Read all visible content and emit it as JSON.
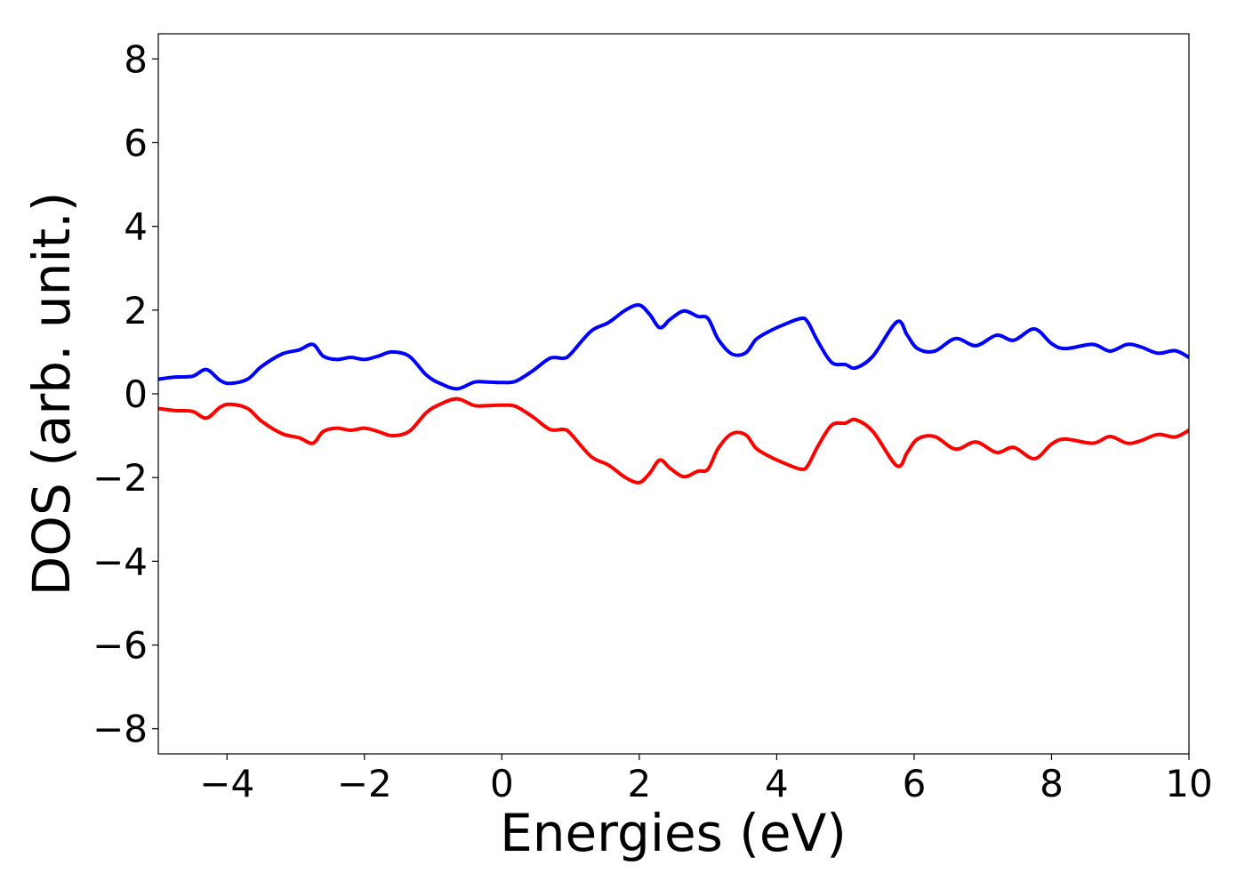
{
  "chart_data": {
    "type": "line",
    "xlabel": "Energies (eV)",
    "ylabel": "DOS (arb. unit.)",
    "xlim": [
      -5,
      10
    ],
    "ylim": [
      -8.6,
      8.6
    ],
    "xticks": [
      -4,
      -2,
      0,
      2,
      4,
      6,
      8,
      10
    ],
    "xtick_labels": [
      "−4",
      "−2",
      "0",
      "2",
      "4",
      "6",
      "8",
      "10"
    ],
    "yticks": [
      8,
      6,
      4,
      2,
      0,
      -2,
      -4,
      -6,
      -8
    ],
    "ytick_labels": [
      "8",
      "6",
      "4",
      "2",
      "0",
      "−2",
      "−4",
      "−6",
      "−8"
    ],
    "grid": false,
    "series": [
      {
        "color": "#0000ff",
        "x": [
          -5.0,
          -4.75,
          -4.5,
          -4.3,
          -4.1,
          -3.95,
          -3.7,
          -3.5,
          -3.2,
          -2.95,
          -2.75,
          -2.6,
          -2.4,
          -2.2,
          -2.0,
          -1.8,
          -1.6,
          -1.35,
          -1.1,
          -0.9,
          -0.65,
          -0.4,
          -0.2,
          0.0,
          0.2,
          0.45,
          0.7,
          0.9,
          1.0,
          1.3,
          1.55,
          1.8,
          2.0,
          2.15,
          2.3,
          2.45,
          2.65,
          2.85,
          3.0,
          3.15,
          3.35,
          3.55,
          3.7,
          3.9,
          4.1,
          4.35,
          4.45,
          4.6,
          4.8,
          5.0,
          5.15,
          5.4,
          5.75,
          5.9,
          6.05,
          6.3,
          6.6,
          6.9,
          7.2,
          7.45,
          7.75,
          8.0,
          8.2,
          8.6,
          8.85,
          9.1,
          9.3,
          9.55,
          9.8,
          10.0
        ],
        "values": [
          0.35,
          0.4,
          0.42,
          0.58,
          0.32,
          0.25,
          0.35,
          0.65,
          0.95,
          1.05,
          1.18,
          0.9,
          0.82,
          0.87,
          0.82,
          0.9,
          1.0,
          0.9,
          0.45,
          0.25,
          0.12,
          0.28,
          0.28,
          0.27,
          0.3,
          0.55,
          0.85,
          0.85,
          0.95,
          1.5,
          1.7,
          2.0,
          2.12,
          1.9,
          1.58,
          1.78,
          1.98,
          1.85,
          1.8,
          1.3,
          0.95,
          0.98,
          1.3,
          1.5,
          1.65,
          1.8,
          1.72,
          1.25,
          0.75,
          0.7,
          0.62,
          0.9,
          1.72,
          1.4,
          1.08,
          1.02,
          1.32,
          1.15,
          1.4,
          1.28,
          1.55,
          1.2,
          1.08,
          1.18,
          1.02,
          1.18,
          1.12,
          0.97,
          1.03,
          0.87
        ]
      },
      {
        "color": "#ff0000",
        "x": [
          -5.0,
          -4.75,
          -4.5,
          -4.3,
          -4.1,
          -3.95,
          -3.7,
          -3.5,
          -3.2,
          -2.95,
          -2.75,
          -2.6,
          -2.4,
          -2.2,
          -2.0,
          -1.8,
          -1.6,
          -1.35,
          -1.1,
          -0.9,
          -0.65,
          -0.4,
          -0.2,
          0.0,
          0.2,
          0.45,
          0.7,
          0.9,
          1.0,
          1.3,
          1.55,
          1.8,
          2.0,
          2.15,
          2.3,
          2.45,
          2.65,
          2.85,
          3.0,
          3.15,
          3.35,
          3.55,
          3.7,
          3.9,
          4.1,
          4.35,
          4.45,
          4.6,
          4.8,
          5.0,
          5.15,
          5.4,
          5.75,
          5.9,
          6.05,
          6.3,
          6.6,
          6.9,
          7.2,
          7.45,
          7.75,
          8.0,
          8.2,
          8.6,
          8.85,
          9.1,
          9.3,
          9.55,
          9.8,
          10.0
        ],
        "values": [
          -0.35,
          -0.4,
          -0.42,
          -0.58,
          -0.32,
          -0.25,
          -0.35,
          -0.65,
          -0.95,
          -1.05,
          -1.18,
          -0.9,
          -0.82,
          -0.87,
          -0.82,
          -0.9,
          -1.0,
          -0.9,
          -0.45,
          -0.25,
          -0.12,
          -0.28,
          -0.28,
          -0.27,
          -0.3,
          -0.55,
          -0.85,
          -0.85,
          -0.95,
          -1.5,
          -1.7,
          -2.0,
          -2.12,
          -1.9,
          -1.58,
          -1.78,
          -1.98,
          -1.85,
          -1.8,
          -1.3,
          -0.95,
          -0.98,
          -1.3,
          -1.5,
          -1.65,
          -1.8,
          -1.72,
          -1.25,
          -0.75,
          -0.7,
          -0.62,
          -0.9,
          -1.72,
          -1.4,
          -1.08,
          -1.02,
          -1.32,
          -1.15,
          -1.4,
          -1.28,
          -1.55,
          -1.2,
          -1.08,
          -1.18,
          -1.02,
          -1.18,
          -1.12,
          -0.97,
          -1.03,
          -0.87
        ]
      }
    ]
  }
}
